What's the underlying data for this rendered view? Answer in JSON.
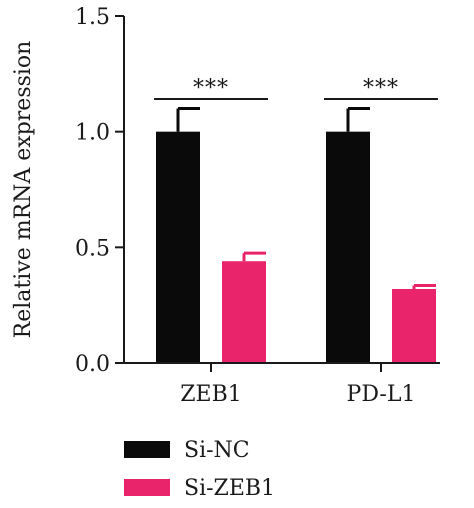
{
  "chart_data": {
    "type": "bar",
    "categories": [
      "ZEB1",
      "PD-L1"
    ],
    "series": [
      {
        "name": "Si-NC",
        "values": [
          1.0,
          1.0
        ],
        "errors": [
          0.1,
          0.1
        ],
        "color": "#0a0a0a"
      },
      {
        "name": "Si-ZEB1",
        "values": [
          0.44,
          0.32
        ],
        "errors": [
          0.035,
          0.015
        ],
        "color": "#e9246a"
      }
    ],
    "ylabel": "Relative mRNA expression",
    "xlabel": "",
    "ylim": [
      0,
      1.5
    ],
    "yticks": [
      "0.0",
      "0.5",
      "1.0",
      "1.5"
    ],
    "significance": [
      "***",
      "***"
    ],
    "grid": false,
    "legend_position": "bottom-left"
  }
}
